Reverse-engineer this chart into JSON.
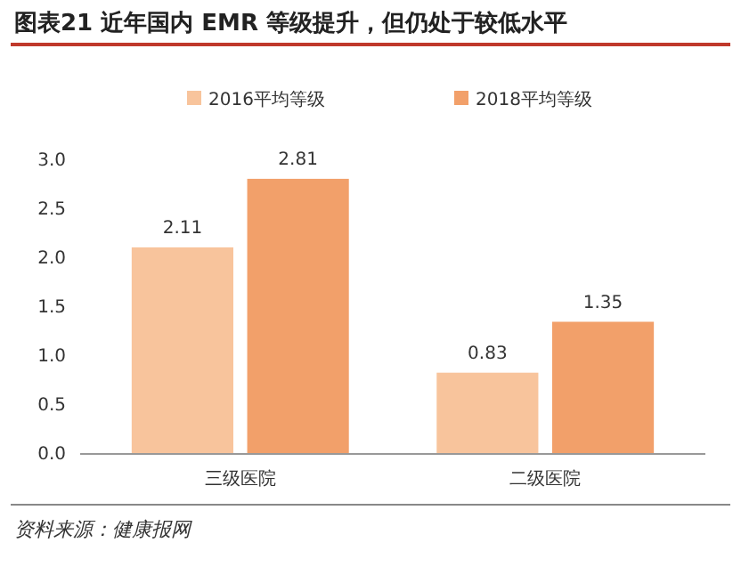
{
  "chart_data": {
    "type": "bar",
    "title": "图表21    近年国内 EMR 等级提升，但仍处于较低水平",
    "categories": [
      "三级医院",
      "二级医院"
    ],
    "series": [
      {
        "name": "2016平均等级",
        "color": "#f8c49c",
        "values": [
          2.11,
          0.83
        ]
      },
      {
        "name": "2018平均等级",
        "color": "#f2a06a",
        "values": [
          2.81,
          1.35
        ]
      }
    ],
    "ylim": [
      0,
      3
    ],
    "yticks": [
      {
        "value": 0,
        "label": "0.0"
      },
      {
        "value": 0.5,
        "label": "0.5"
      },
      {
        "value": 1,
        "label": "1.0"
      },
      {
        "value": 1.5,
        "label": "1.5"
      },
      {
        "value": 2,
        "label": "2.0"
      },
      {
        "value": 2.5,
        "label": "2.5"
      },
      {
        "value": 3,
        "label": "3.0"
      }
    ],
    "data_labels": true,
    "grid": false,
    "legend": "top",
    "annotations": [
      "资料来源：健康报网"
    ]
  }
}
